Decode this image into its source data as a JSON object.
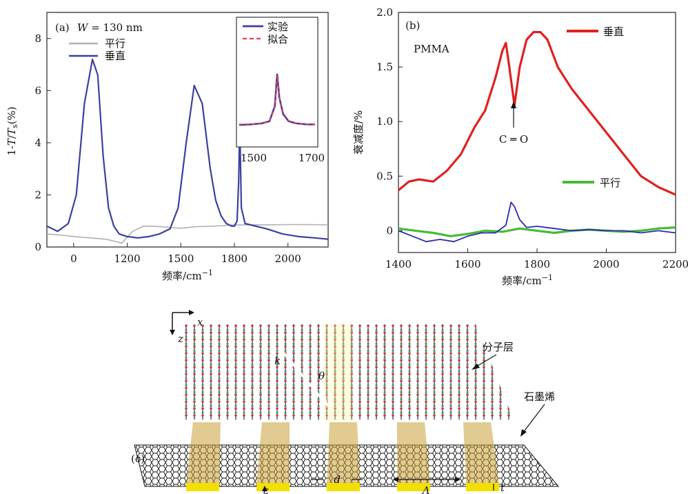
{
  "panel_a": {
    "label": "(a)",
    "width_note_var": "W",
    "width_note_val": " = 130 nm",
    "ylabel": "1-T/T_s(%)",
    "ylabel_main": "1-",
    "ylabel_T": "T",
    "ylabel_slash": "/",
    "ylabel_Ts": "T",
    "ylabel_sub": "s",
    "ylabel_pct": "(%)",
    "xlabel_text": "频率/cm",
    "xlabel_sup": "−1",
    "legend": [
      {
        "name": "平行",
        "color": "#b0b0b0"
      },
      {
        "name": "垂直",
        "color": "#3b3fa0"
      }
    ],
    "inset": {
      "legend": [
        {
          "name": "实验",
          "color": "#3b3fa0"
        },
        {
          "name": "拟合",
          "color": "#e04050"
        }
      ],
      "xticks": [
        "1500",
        "1700"
      ]
    }
  },
  "panel_b": {
    "label": "(b)",
    "material": "PMMA",
    "ylabel": "衰减度/%",
    "xlabel_text": "频率/cm",
    "xlabel_sup": "−1",
    "annotation": "C ═ O",
    "legend": [
      {
        "name": "垂直",
        "color": "#e02020"
      },
      {
        "name": "平行",
        "color": "#44bb33"
      }
    ]
  },
  "panel_c": {
    "label": "(c)",
    "axis_x": "x",
    "axis_z": "z",
    "k": "k",
    "theta": "θ",
    "molecule_layer": "分子层",
    "graphene": "石墨烯",
    "epsilon": "ε",
    "d": "d",
    "Lambda": "Λ",
    "t": "t"
  },
  "chart_data": [
    {
      "type": "line",
      "panel": "(a)",
      "xlabel": "频率/cm⁻¹",
      "ylabel": "1-T/Ts(%)",
      "xticks": [
        "0",
        "1200",
        "1500",
        "1800",
        "2000"
      ],
      "yticks": [
        0,
        2,
        4,
        6,
        8
      ],
      "ylim": [
        0,
        9
      ],
      "x_domain": [
        -0.5,
        4.75
      ],
      "series": [
        {
          "name": "平行",
          "color": "#b0b0b0",
          "x": [
            -0.5,
            -0.2,
            0,
            0.3,
            0.6,
            0.8,
            0.9,
            1.1,
            1.3,
            1.5,
            1.8,
            2.0,
            2.3,
            2.6,
            2.8,
            3.0,
            3.3,
            3.6,
            4.0,
            4.4,
            4.75
          ],
          "y": [
            0.5,
            0.45,
            0.4,
            0.35,
            0.3,
            0.2,
            0.15,
            0.6,
            0.8,
            0.8,
            0.75,
            0.72,
            0.78,
            0.8,
            0.82,
            0.85,
            0.85,
            0.85,
            0.86,
            0.86,
            0.85
          ]
        },
        {
          "name": "垂直",
          "color": "#3b3fa0",
          "x": [
            -0.5,
            -0.3,
            -0.1,
            0.05,
            0.2,
            0.35,
            0.45,
            0.55,
            0.65,
            0.75,
            0.85,
            1.0,
            1.2,
            1.4,
            1.6,
            1.8,
            1.95,
            2.1,
            2.25,
            2.4,
            2.55,
            2.65,
            2.75,
            2.85,
            2.95,
            3.0,
            3.05,
            3.08,
            3.1,
            3.13,
            3.2,
            3.4,
            3.6,
            3.9,
            4.2,
            4.5,
            4.75
          ],
          "y": [
            0.8,
            0.6,
            0.9,
            2.0,
            5.5,
            7.2,
            6.6,
            3.5,
            1.5,
            0.8,
            0.5,
            0.4,
            0.35,
            0.4,
            0.5,
            0.7,
            1.5,
            4.0,
            6.2,
            5.5,
            3.0,
            1.8,
            1.2,
            0.9,
            0.8,
            0.8,
            1.0,
            2.5,
            4.7,
            1.5,
            0.9,
            0.8,
            0.7,
            0.5,
            0.4,
            0.35,
            0.3
          ]
        }
      ]
    },
    {
      "type": "line",
      "panel": "(a) inset",
      "xticks": [
        "1500",
        "1700"
      ],
      "series": [
        {
          "name": "实验",
          "color": "#3b3fa0",
          "x": [
            0,
            0.15,
            0.3,
            0.4,
            0.47,
            0.5,
            0.53,
            0.58,
            0.65,
            0.75,
            0.9,
            1.0
          ],
          "y": [
            0.05,
            0.06,
            0.08,
            0.12,
            0.4,
            1.0,
            0.55,
            0.25,
            0.12,
            0.08,
            0.06,
            0.06
          ]
        },
        {
          "name": "拟合",
          "color": "#e04050",
          "x": [
            0,
            0.15,
            0.3,
            0.4,
            0.47,
            0.5,
            0.53,
            0.58,
            0.65,
            0.75,
            0.9,
            1.0
          ],
          "y": [
            0.06,
            0.06,
            0.08,
            0.12,
            0.38,
            0.97,
            0.55,
            0.27,
            0.13,
            0.08,
            0.06,
            0.06
          ]
        }
      ]
    },
    {
      "type": "line",
      "panel": "(b)",
      "xlabel": "频率/cm⁻¹",
      "ylabel": "衰减度/%",
      "xticks": [
        1400,
        1600,
        1800,
        2000,
        2200
      ],
      "yticks": [
        "0",
        "0.5",
        "1.0",
        "1.5",
        "2.0"
      ],
      "xlim": [
        1400,
        2200
      ],
      "ylim": [
        -0.2,
        2.0
      ],
      "series": [
        {
          "name": "垂直",
          "color": "#e02020",
          "x": [
            1400,
            1430,
            1460,
            1500,
            1540,
            1580,
            1620,
            1650,
            1680,
            1700,
            1710,
            1720,
            1735,
            1750,
            1770,
            1790,
            1810,
            1830,
            1860,
            1900,
            1950,
            2000,
            2050,
            2100,
            2150,
            2200
          ],
          "y": [
            0.37,
            0.45,
            0.47,
            0.45,
            0.55,
            0.7,
            0.95,
            1.1,
            1.4,
            1.65,
            1.72,
            1.5,
            1.15,
            1.5,
            1.75,
            1.82,
            1.82,
            1.75,
            1.5,
            1.3,
            1.1,
            0.9,
            0.7,
            0.5,
            0.4,
            0.33
          ]
        },
        {
          "name": "平行",
          "color": "#44bb33",
          "x": [
            1400,
            1450,
            1500,
            1550,
            1600,
            1650,
            1700,
            1750,
            1800,
            1850,
            1900,
            1950,
            2000,
            2050,
            2100,
            2150,
            2200
          ],
          "y": [
            0.02,
            0.0,
            -0.02,
            -0.05,
            -0.03,
            0.0,
            -0.01,
            0.02,
            0.0,
            -0.02,
            0.0,
            0.01,
            0.0,
            -0.01,
            0.0,
            0.02,
            0.03
          ]
        },
        {
          "name": "",
          "color": "#2a2ab0",
          "x": [
            1400,
            1440,
            1480,
            1520,
            1560,
            1600,
            1640,
            1680,
            1710,
            1725,
            1735,
            1750,
            1770,
            1800,
            1850,
            1900,
            1950,
            2000,
            2050,
            2100,
            2150,
            2200
          ],
          "y": [
            0.0,
            -0.05,
            -0.1,
            -0.08,
            -0.1,
            -0.05,
            -0.02,
            -0.02,
            0.05,
            0.26,
            0.22,
            0.1,
            0.03,
            0.04,
            0.02,
            0.0,
            0.01,
            0.0,
            0.0,
            -0.02,
            0.0,
            -0.02
          ]
        }
      ]
    }
  ]
}
